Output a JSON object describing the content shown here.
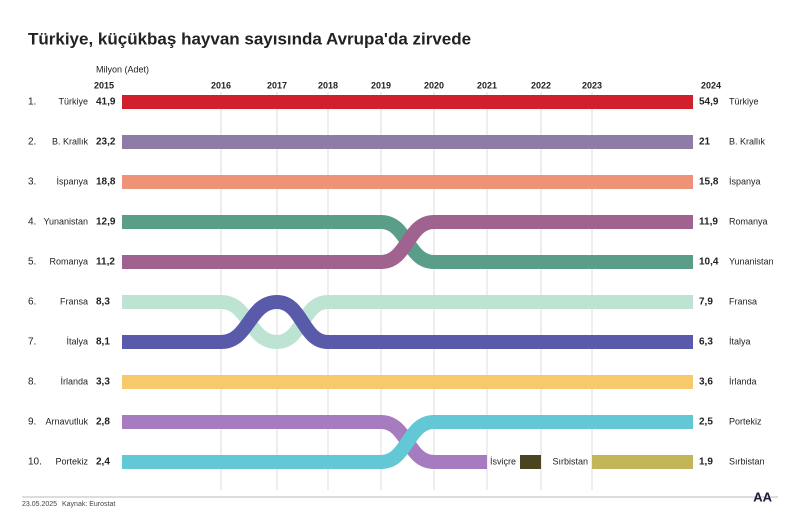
{
  "chart_data": {
    "type": "bump",
    "title": "Türkiye, küçükbaş hayvan sayısında Avrupa'da zirvede",
    "unit_label": "Milyon (Adet)",
    "x": [
      2015,
      2016,
      2017,
      2018,
      2019,
      2020,
      2021,
      2022,
      2023,
      2024
    ],
    "rank_labels": [
      "1.",
      "2.",
      "3.",
      "4.",
      "5.",
      "6.",
      "7.",
      "8.",
      "9.",
      "10."
    ],
    "series": [
      {
        "name": "Türkiye",
        "color": "#d0202e",
        "ranks": [
          1,
          1,
          1,
          1,
          1,
          1,
          1,
          1,
          1,
          1
        ],
        "values": [
          41.9,
          null,
          null,
          null,
          null,
          null,
          null,
          null,
          null,
          54.9
        ],
        "value_labels": [
          "41,9",
          null,
          null,
          null,
          null,
          null,
          null,
          null,
          null,
          "54,9"
        ]
      },
      {
        "name": "B. Krallık",
        "color": "#8e7ca8",
        "ranks": [
          2,
          2,
          2,
          2,
          2,
          2,
          2,
          2,
          2,
          2
        ],
        "values": [
          23.2,
          null,
          null,
          null,
          null,
          null,
          null,
          null,
          null,
          21
        ],
        "value_labels": [
          "23,2",
          null,
          null,
          null,
          null,
          null,
          null,
          null,
          null,
          "21"
        ]
      },
      {
        "name": "İspanya",
        "color": "#ee9377",
        "ranks": [
          3,
          3,
          3,
          3,
          3,
          3,
          3,
          3,
          3,
          3
        ],
        "values": [
          18.8,
          null,
          null,
          null,
          null,
          null,
          null,
          null,
          null,
          15.8
        ],
        "value_labels": [
          "18,8",
          null,
          null,
          null,
          null,
          null,
          null,
          null,
          null,
          "15,8"
        ]
      },
      {
        "name": "Yunanistan",
        "color": "#5a9e8a",
        "ranks": [
          4,
          4,
          4,
          4,
          4,
          5,
          5,
          5,
          5,
          5
        ],
        "values": [
          12.9,
          null,
          null,
          null,
          null,
          null,
          null,
          null,
          null,
          10.4
        ],
        "value_labels": [
          "12,9",
          null,
          null,
          null,
          null,
          null,
          null,
          null,
          null,
          "10,4"
        ]
      },
      {
        "name": "Romanya",
        "color": "#a0638f",
        "ranks": [
          5,
          5,
          5,
          5,
          5,
          4,
          4,
          4,
          4,
          4
        ],
        "values": [
          11.2,
          null,
          null,
          null,
          null,
          null,
          null,
          null,
          null,
          11.9
        ],
        "value_labels": [
          "11,2",
          null,
          null,
          null,
          null,
          null,
          null,
          null,
          null,
          "11,9"
        ]
      },
      {
        "name": "Fransa",
        "color": "#bde4d3",
        "ranks": [
          6,
          6,
          7,
          6,
          6,
          6,
          6,
          6,
          6,
          6
        ],
        "values": [
          8.3,
          null,
          null,
          null,
          null,
          null,
          null,
          null,
          null,
          7.9
        ],
        "value_labels": [
          "8,3",
          null,
          null,
          null,
          null,
          null,
          null,
          null,
          null,
          "7,9"
        ]
      },
      {
        "name": "İtalya",
        "color": "#5a5aaa",
        "ranks": [
          7,
          7,
          6,
          7,
          7,
          7,
          7,
          7,
          7,
          7
        ],
        "values": [
          8.1,
          null,
          null,
          null,
          null,
          null,
          null,
          null,
          null,
          6.3
        ],
        "value_labels": [
          "8,1",
          null,
          null,
          null,
          null,
          null,
          null,
          null,
          null,
          "6,3"
        ]
      },
      {
        "name": "İrlanda",
        "color": "#f8c96a",
        "ranks": [
          8,
          8,
          8,
          8,
          8,
          8,
          8,
          8,
          8,
          8
        ],
        "values": [
          3.3,
          null,
          null,
          null,
          null,
          null,
          null,
          null,
          null,
          3.6
        ],
        "value_labels": [
          "3,3",
          null,
          null,
          null,
          null,
          null,
          null,
          null,
          null,
          "3,6"
        ]
      },
      {
        "name": "Arnavutluk",
        "color": "#a77bbf",
        "ranks": [
          9,
          9,
          9,
          9,
          9,
          10,
          10,
          null,
          null,
          null
        ],
        "values": [
          2.8,
          null,
          null,
          null,
          null,
          null,
          null,
          null,
          null,
          null
        ],
        "value_labels": [
          "2,8",
          null,
          null,
          null,
          null,
          null,
          null,
          null,
          null,
          null
        ]
      },
      {
        "name": "Portekiz",
        "color": "#62c8d6",
        "ranks": [
          10,
          10,
          10,
          10,
          10,
          9,
          9,
          9,
          9,
          9
        ],
        "values": [
          2.4,
          null,
          null,
          null,
          null,
          null,
          null,
          null,
          null,
          2.5
        ],
        "value_labels": [
          "2,4",
          null,
          null,
          null,
          null,
          null,
          null,
          null,
          null,
          "2,5"
        ]
      },
      {
        "name": "İsviçre",
        "color": "#4a4520",
        "ranks": [
          null,
          null,
          null,
          null,
          null,
          null,
          null,
          10,
          null,
          null
        ],
        "values": [
          null,
          null,
          null,
          null,
          null,
          null,
          null,
          null,
          null,
          null
        ],
        "value_labels": [
          null,
          null,
          null,
          null,
          null,
          null,
          null,
          null,
          null,
          null
        ]
      },
      {
        "name": "Sırbistan",
        "color": "#c2b659",
        "ranks": [
          null,
          null,
          null,
          null,
          null,
          null,
          null,
          null,
          10,
          10
        ],
        "values": [
          null,
          null,
          null,
          null,
          null,
          null,
          null,
          null,
          null,
          1.9
        ],
        "value_labels": [
          null,
          null,
          null,
          null,
          null,
          null,
          null,
          null,
          null,
          "1,9"
        ]
      }
    ],
    "grid": true,
    "date": "23.05.2025",
    "source": "Kaynak: Eurostat",
    "logo": "AA"
  }
}
